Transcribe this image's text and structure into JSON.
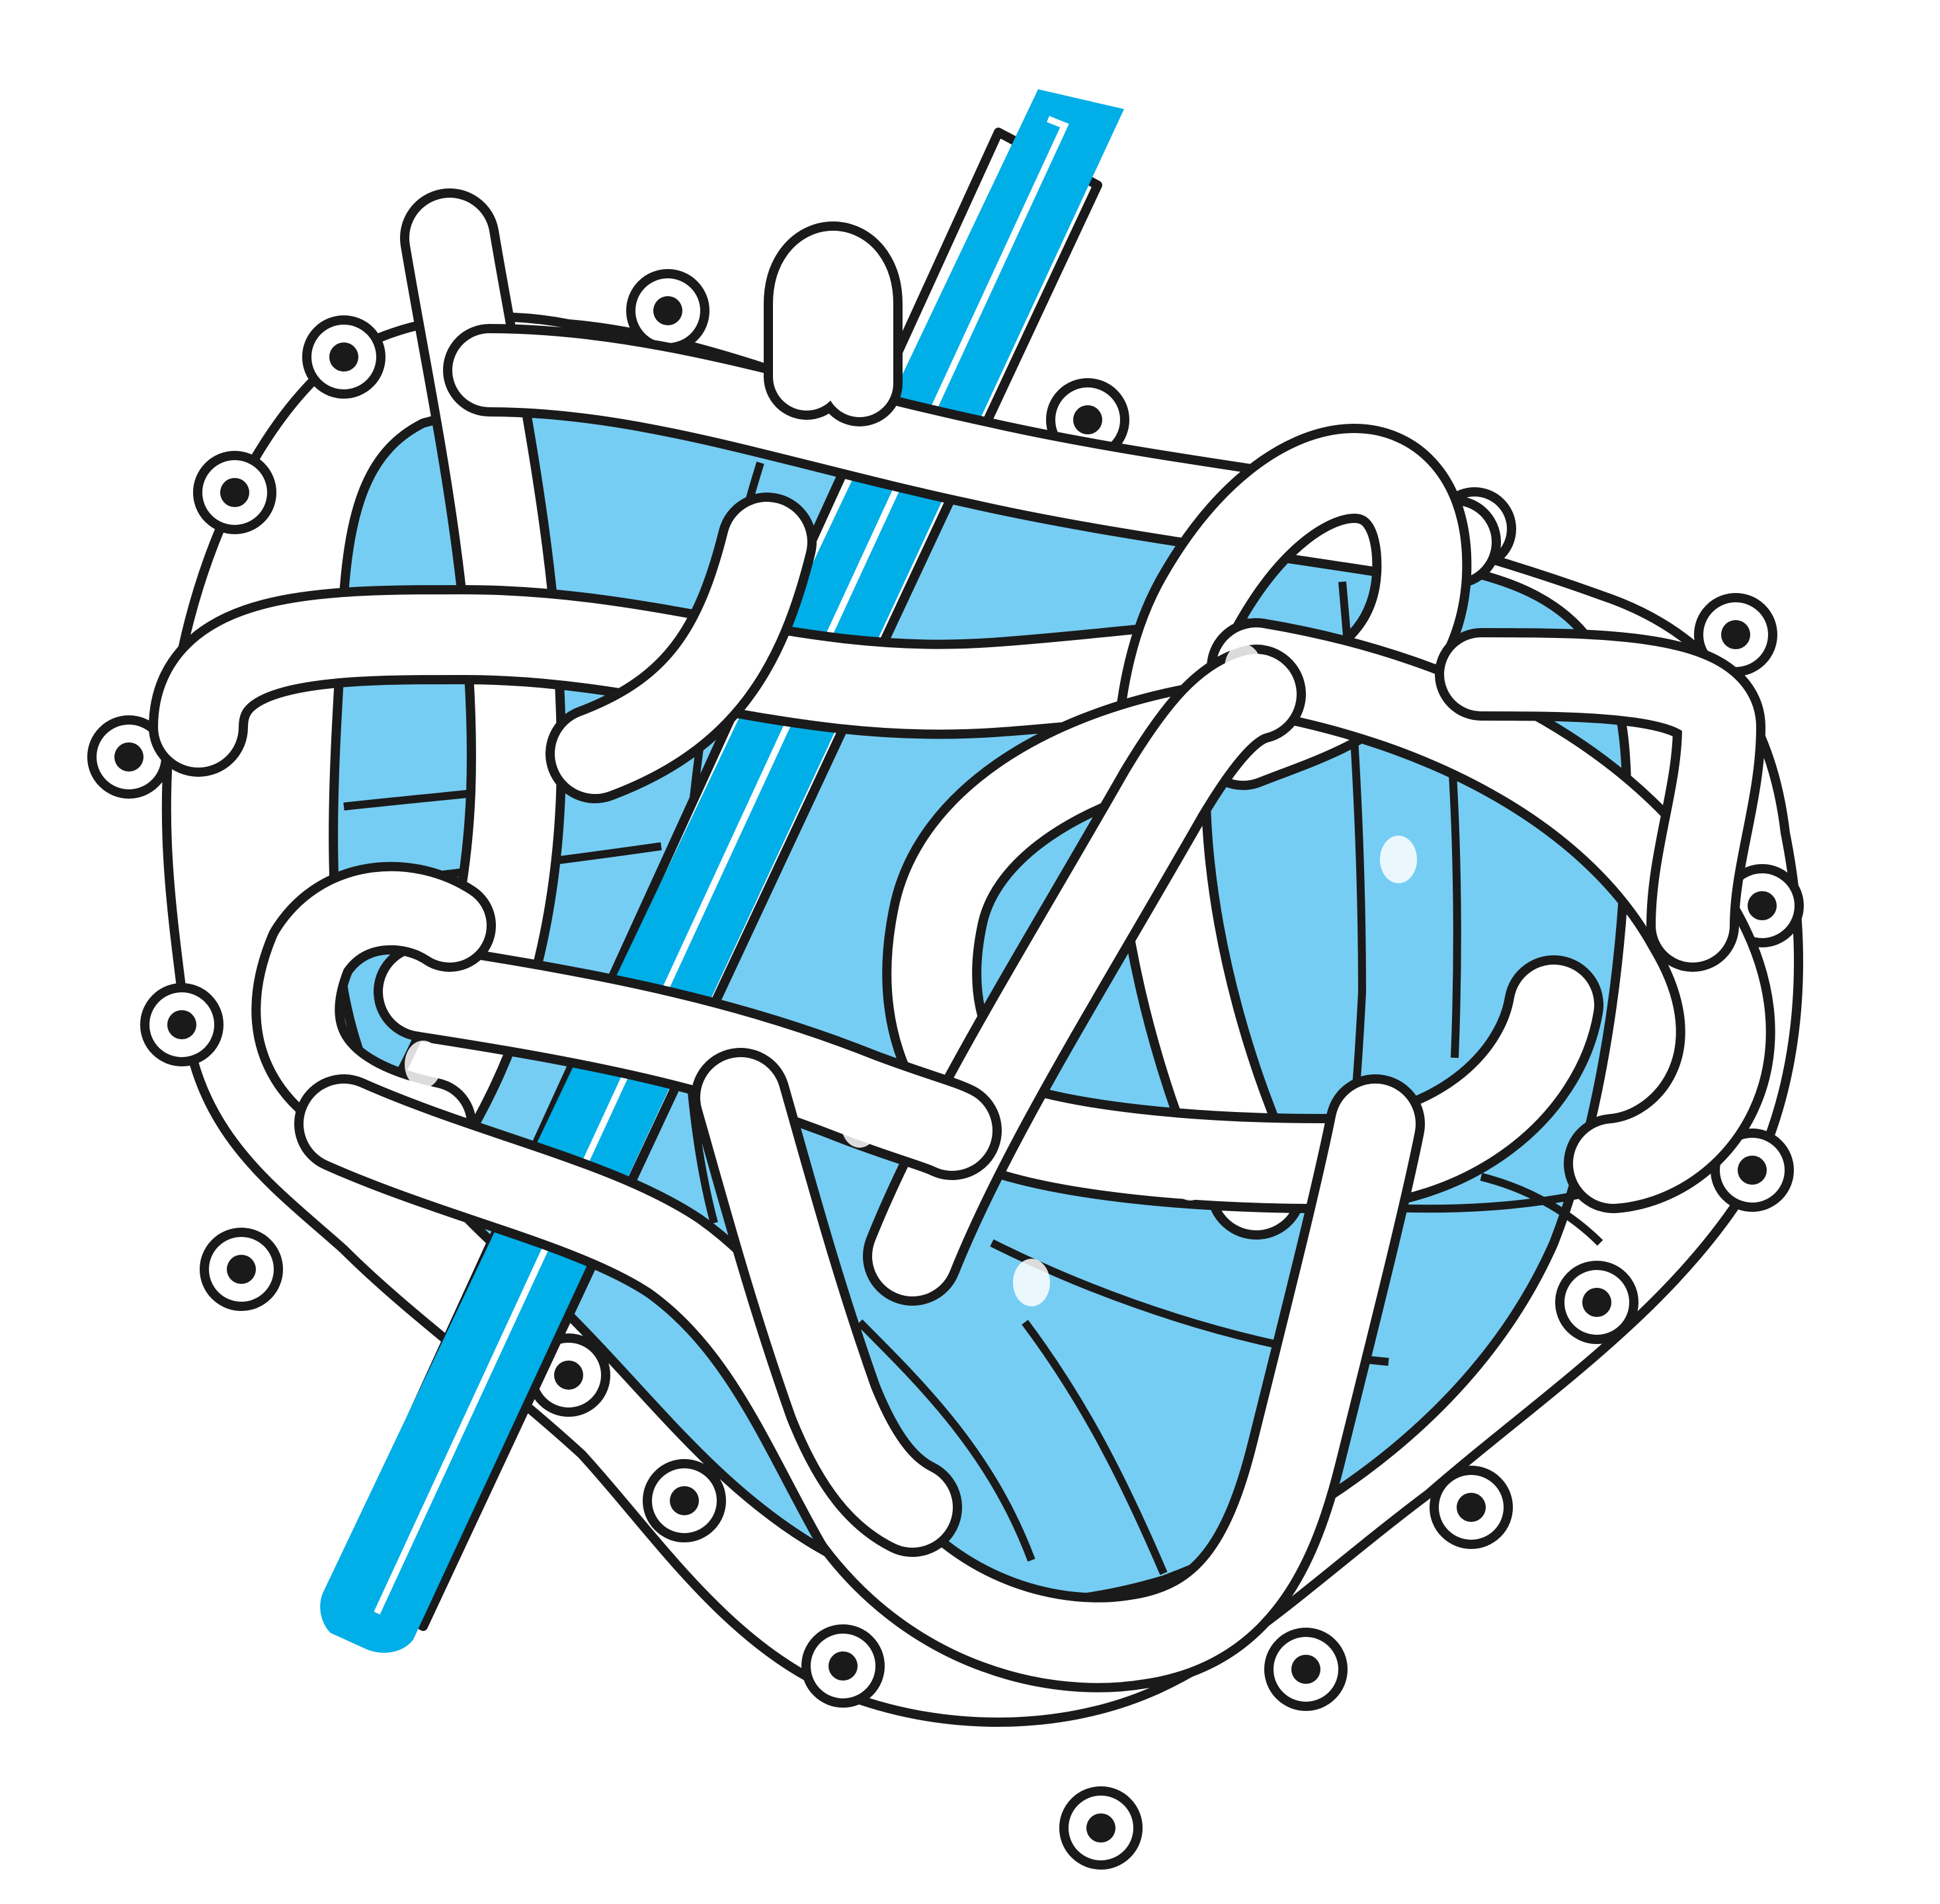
{
  "illustration": {
    "subject": "icon",
    "colors": {
      "background": "#ffffff",
      "outline": "#1a1a1a",
      "core_fill": "#76cdf3",
      "rod_fill": "#00aee8",
      "strand_fill": "#ffffff",
      "bead_fill": "#1a1a1a",
      "highlight": "#ffffff"
    }
  }
}
